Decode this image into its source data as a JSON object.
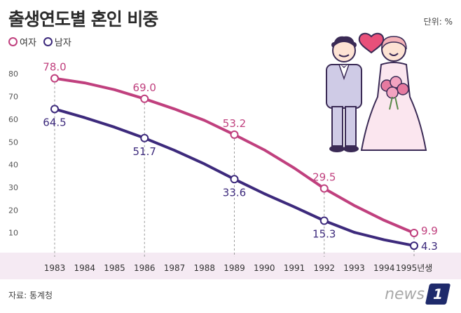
{
  "header": {
    "title": "출생연도별 혼인 비중",
    "unit": "단위: %"
  },
  "source": "자료: 통계청",
  "logo": {
    "text": "news",
    "badge": "1"
  },
  "colors": {
    "female": "#c0407e",
    "male": "#3d2a7c",
    "band": "#f5eaf3",
    "heart": "#e8507a"
  },
  "chart_data": {
    "type": "line",
    "x": [
      "1983",
      "1984",
      "1985",
      "1986",
      "1987",
      "1988",
      "1989",
      "1990",
      "1991",
      "1992",
      "1993",
      "1994",
      "1995년생"
    ],
    "yticks": [
      10,
      20,
      30,
      40,
      50,
      60,
      70,
      80
    ],
    "ylim": [
      0,
      85
    ],
    "grid": false,
    "legend_position": "top-left",
    "labeled_x": [
      "1983",
      "1986",
      "1989",
      "1992",
      "1995년생"
    ],
    "series": [
      {
        "name": "여자",
        "values": [
          78.0,
          76.0,
          73.0,
          69.0,
          64.5,
          59.5,
          53.2,
          46.5,
          38.5,
          29.5,
          22.0,
          15.5,
          9.9
        ],
        "labels": [
          "78.0",
          "69.0",
          "53.2",
          "29.5",
          "9.9"
        ]
      },
      {
        "name": "남자",
        "values": [
          64.5,
          60.7,
          56.5,
          51.7,
          46.3,
          40.3,
          33.6,
          27.2,
          21.4,
          15.3,
          10.2,
          6.9,
          4.3
        ],
        "labels": [
          "64.5",
          "51.7",
          "33.6",
          "15.3",
          "4.3"
        ]
      }
    ]
  }
}
